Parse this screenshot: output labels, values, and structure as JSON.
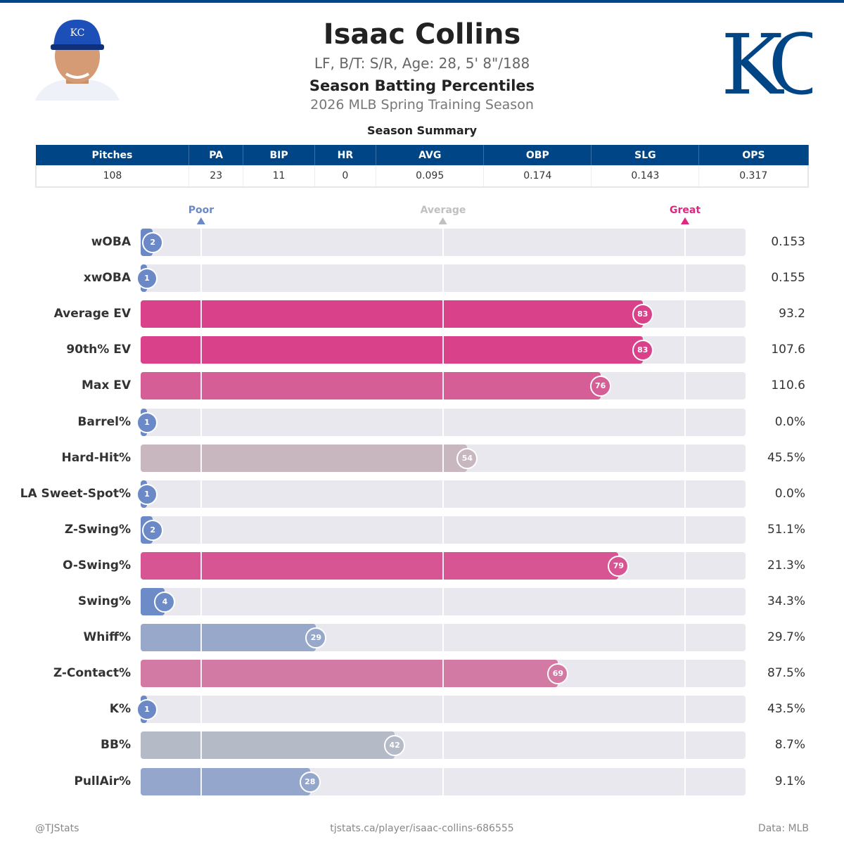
{
  "player": {
    "name": "Isaac Collins",
    "bio": "LF, B/T: S/R, Age: 28, 5' 8\"/188",
    "title": "Season Batting Percentiles",
    "season": "2026 MLB Spring Training Season",
    "team_logo_text": "KC"
  },
  "summary": {
    "title": "Season Summary",
    "headers": [
      "Pitches",
      "PA",
      "BIP",
      "HR",
      "AVG",
      "OBP",
      "SLG",
      "OPS"
    ],
    "values": [
      "108",
      "23",
      "11",
      "0",
      "0.095",
      "0.174",
      "0.143",
      "0.317"
    ]
  },
  "scale": {
    "poor": "Poor",
    "average": "Average",
    "great": "Great",
    "poor_color": "#6b89c7",
    "average_color": "#c0c0c0",
    "great_color": "#e0267f"
  },
  "metrics": [
    {
      "label": "wOBA",
      "pct": 2,
      "value": "0.153",
      "color": "#6b89c7"
    },
    {
      "label": "xwOBA",
      "pct": 1,
      "value": "0.155",
      "color": "#6b89c7"
    },
    {
      "label": "Average EV",
      "pct": 83,
      "value": "93.2",
      "color": "#d9418a"
    },
    {
      "label": "90th% EV",
      "pct": 83,
      "value": "107.6",
      "color": "#d9418a"
    },
    {
      "label": "Max EV",
      "pct": 76,
      "value": "110.6",
      "color": "#d45e95"
    },
    {
      "label": "Barrel%",
      "pct": 1,
      "value": "0.0%",
      "color": "#6b89c7"
    },
    {
      "label": "Hard-Hit%",
      "pct": 54,
      "value": "45.5%",
      "color": "#c9b7bf"
    },
    {
      "label": "LA Sweet-Spot%",
      "pct": 1,
      "value": "0.0%",
      "color": "#6b89c7"
    },
    {
      "label": "Z-Swing%",
      "pct": 2,
      "value": "51.1%",
      "color": "#6b89c7"
    },
    {
      "label": "O-Swing%",
      "pct": 79,
      "value": "21.3%",
      "color": "#d75593"
    },
    {
      "label": "Swing%",
      "pct": 4,
      "value": "34.3%",
      "color": "#6d8bc7"
    },
    {
      "label": "Whiff%",
      "pct": 29,
      "value": "29.7%",
      "color": "#97a8ca"
    },
    {
      "label": "Z-Contact%",
      "pct": 69,
      "value": "87.5%",
      "color": "#d27aa3"
    },
    {
      "label": "K%",
      "pct": 1,
      "value": "43.5%",
      "color": "#6b89c7"
    },
    {
      "label": "BB%",
      "pct": 42,
      "value": "8.7%",
      "color": "#b4bac6"
    },
    {
      "label": "PullAir%",
      "pct": 28,
      "value": "9.1%",
      "color": "#94a6cb"
    }
  ],
  "footer": {
    "left": "@TJStats",
    "center": "tjstats.ca/player/isaac-collins-686555",
    "right": "Data: MLB"
  }
}
